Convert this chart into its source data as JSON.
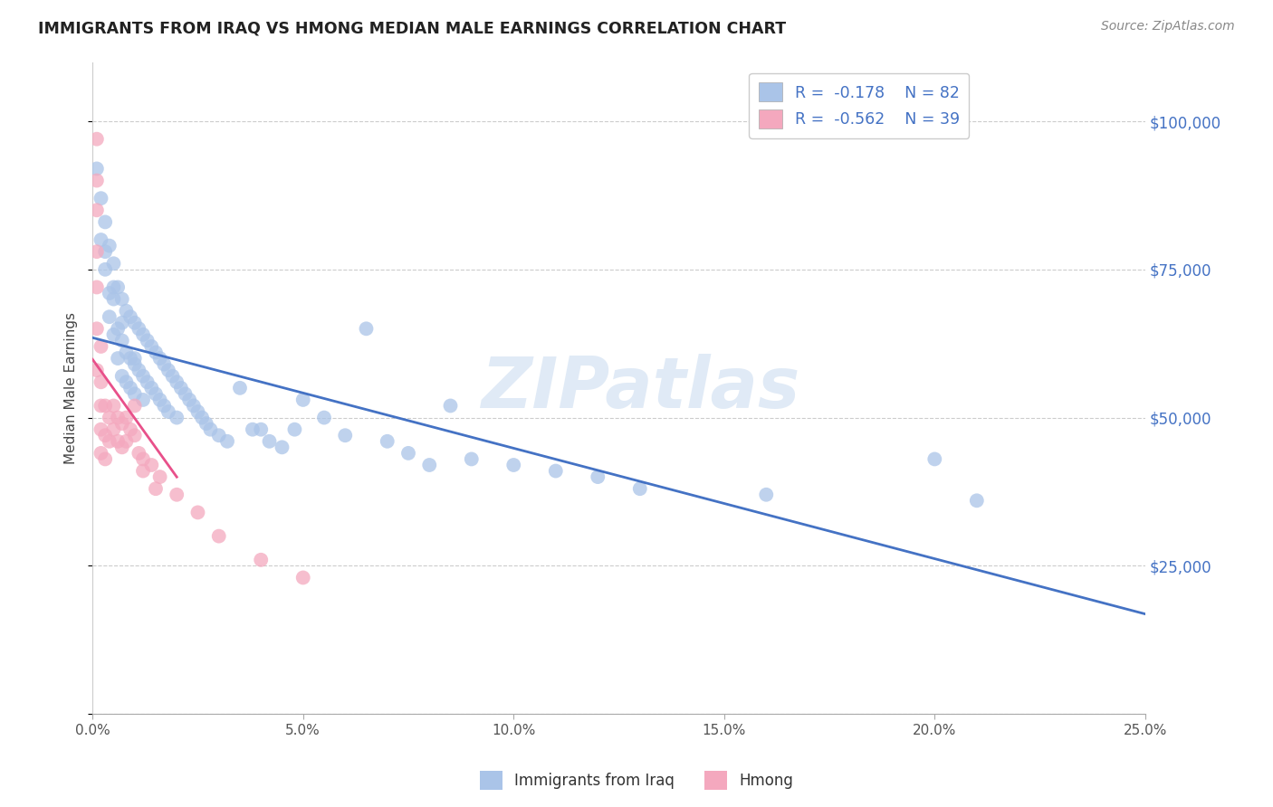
{
  "title": "IMMIGRANTS FROM IRAQ VS HMONG MEDIAN MALE EARNINGS CORRELATION CHART",
  "source": "Source: ZipAtlas.com",
  "ylabel": "Median Male Earnings",
  "xlim": [
    0.0,
    0.25
  ],
  "ylim": [
    0,
    110000
  ],
  "xtick_labels": [
    "0.0%",
    "5.0%",
    "10.0%",
    "15.0%",
    "20.0%",
    "25.0%"
  ],
  "xtick_vals": [
    0.0,
    0.05,
    0.1,
    0.15,
    0.2,
    0.25
  ],
  "ytick_vals": [
    0,
    25000,
    50000,
    75000,
    100000
  ],
  "ytick_labels": [
    "",
    "$25,000",
    "$50,000",
    "$75,000",
    "$100,000"
  ],
  "iraq_R": -0.178,
  "iraq_N": 82,
  "hmong_R": -0.562,
  "hmong_N": 39,
  "iraq_color": "#aac4e8",
  "hmong_color": "#f4a8be",
  "iraq_line_color": "#4472c4",
  "hmong_line_color": "#e8508a",
  "legend_label_iraq": "Immigrants from Iraq",
  "legend_label_hmong": "Hmong",
  "watermark": "ZIPatlas",
  "iraq_scatter_x": [
    0.001,
    0.002,
    0.002,
    0.003,
    0.003,
    0.004,
    0.004,
    0.004,
    0.005,
    0.005,
    0.005,
    0.006,
    0.006,
    0.006,
    0.007,
    0.007,
    0.007,
    0.008,
    0.008,
    0.008,
    0.009,
    0.009,
    0.009,
    0.01,
    0.01,
    0.01,
    0.011,
    0.011,
    0.012,
    0.012,
    0.012,
    0.013,
    0.013,
    0.014,
    0.014,
    0.015,
    0.015,
    0.016,
    0.016,
    0.017,
    0.017,
    0.018,
    0.018,
    0.019,
    0.02,
    0.02,
    0.021,
    0.022,
    0.023,
    0.024,
    0.025,
    0.026,
    0.027,
    0.028,
    0.03,
    0.032,
    0.035,
    0.038,
    0.04,
    0.042,
    0.045,
    0.048,
    0.05,
    0.055,
    0.06,
    0.065,
    0.07,
    0.075,
    0.08,
    0.085,
    0.09,
    0.1,
    0.11,
    0.12,
    0.13,
    0.16,
    0.2,
    0.21,
    0.003,
    0.005,
    0.007,
    0.01
  ],
  "iraq_scatter_y": [
    92000,
    87000,
    80000,
    83000,
    75000,
    79000,
    71000,
    67000,
    76000,
    70000,
    64000,
    72000,
    65000,
    60000,
    70000,
    63000,
    57000,
    68000,
    61000,
    56000,
    67000,
    60000,
    55000,
    66000,
    59000,
    54000,
    65000,
    58000,
    64000,
    57000,
    53000,
    63000,
    56000,
    62000,
    55000,
    61000,
    54000,
    60000,
    53000,
    59000,
    52000,
    58000,
    51000,
    57000,
    56000,
    50000,
    55000,
    54000,
    53000,
    52000,
    51000,
    50000,
    49000,
    48000,
    47000,
    46000,
    55000,
    48000,
    48000,
    46000,
    45000,
    48000,
    53000,
    50000,
    47000,
    65000,
    46000,
    44000,
    42000,
    52000,
    43000,
    42000,
    41000,
    40000,
    38000,
    37000,
    43000,
    36000,
    78000,
    72000,
    66000,
    60000
  ],
  "hmong_scatter_x": [
    0.001,
    0.001,
    0.001,
    0.001,
    0.001,
    0.001,
    0.001,
    0.002,
    0.002,
    0.002,
    0.002,
    0.002,
    0.003,
    0.003,
    0.003,
    0.004,
    0.004,
    0.005,
    0.005,
    0.006,
    0.006,
    0.007,
    0.007,
    0.008,
    0.008,
    0.009,
    0.01,
    0.01,
    0.011,
    0.012,
    0.014,
    0.016,
    0.02,
    0.025,
    0.03,
    0.04,
    0.05,
    0.012,
    0.015
  ],
  "hmong_scatter_y": [
    97000,
    90000,
    85000,
    78000,
    72000,
    65000,
    58000,
    62000,
    56000,
    52000,
    48000,
    44000,
    52000,
    47000,
    43000,
    50000,
    46000,
    52000,
    48000,
    50000,
    46000,
    49000,
    45000,
    50000,
    46000,
    48000,
    52000,
    47000,
    44000,
    43000,
    42000,
    40000,
    37000,
    34000,
    30000,
    26000,
    23000,
    41000,
    38000
  ]
}
